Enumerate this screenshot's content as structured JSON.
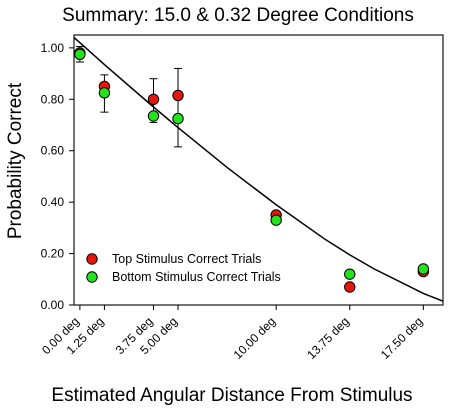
{
  "chart_data": {
    "type": "scatter",
    "title": "Summary: 15.0 & 0.32 Degree Conditions",
    "xlabel": "Estimated Angular Distance From Stimulus",
    "ylabel": "Probability Correct",
    "xlim": [
      -0.3,
      18.5
    ],
    "ylim": [
      0,
      1.05
    ],
    "grid": false,
    "legend_placement": "bottom-left",
    "x_ticks": [
      {
        "value": 0,
        "label": "0.00 deg"
      },
      {
        "value": 1.25,
        "label": "1.25 deg"
      },
      {
        "value": 3.75,
        "label": "3.75 deg"
      },
      {
        "value": 5,
        "label": "5.00 deg"
      },
      {
        "value": 10,
        "label": "10.00 deg"
      },
      {
        "value": 13.75,
        "label": "13.75 deg"
      },
      {
        "value": 17.5,
        "label": "17.50 deg"
      }
    ],
    "y_ticks": [
      {
        "value": 0,
        "label": "0.00"
      },
      {
        "value": 0.2,
        "label": "0.20"
      },
      {
        "value": 0.4,
        "label": "0.40"
      },
      {
        "value": 0.6,
        "label": "0.60"
      },
      {
        "value": 0.8,
        "label": "0.80"
      },
      {
        "value": 1,
        "label": "1.00"
      }
    ],
    "series": [
      {
        "name": "Top Stimulus Correct Trials",
        "color": "#e8150c",
        "points": [
          {
            "x": 0,
            "y": 0.98
          },
          {
            "x": 1.25,
            "y": 0.85
          },
          {
            "x": 3.75,
            "y": 0.8
          },
          {
            "x": 5,
            "y": 0.815
          },
          {
            "x": 10,
            "y": 0.35
          },
          {
            "x": 13.75,
            "y": 0.07
          },
          {
            "x": 17.5,
            "y": 0.13
          }
        ]
      },
      {
        "name": "Bottom Stimulus Correct Trials",
        "color": "#22e31c",
        "points": [
          {
            "x": 0,
            "y": 0.975
          },
          {
            "x": 1.25,
            "y": 0.825
          },
          {
            "x": 3.75,
            "y": 0.735
          },
          {
            "x": 5,
            "y": 0.725
          },
          {
            "x": 10,
            "y": 0.33
          },
          {
            "x": 13.75,
            "y": 0.12
          },
          {
            "x": 17.5,
            "y": 0.14
          }
        ]
      }
    ],
    "error_bars": [
      {
        "x": 0,
        "low": 0.945,
        "high": 1.005
      },
      {
        "x": 1.25,
        "low": 0.75,
        "high": 0.895
      },
      {
        "x": 3.75,
        "low": 0.71,
        "high": 0.88
      },
      {
        "x": 5,
        "low": 0.615,
        "high": 0.92
      }
    ],
    "fit_curve": {
      "type": "line",
      "color": "#000000",
      "points": [
        {
          "x": -0.3,
          "y": 1.04
        },
        {
          "x": 0,
          "y": 1.02
        },
        {
          "x": 1.25,
          "y": 0.935
        },
        {
          "x": 3.75,
          "y": 0.77
        },
        {
          "x": 5,
          "y": 0.69
        },
        {
          "x": 7.5,
          "y": 0.535
        },
        {
          "x": 10,
          "y": 0.39
        },
        {
          "x": 12.5,
          "y": 0.255
        },
        {
          "x": 13.75,
          "y": 0.195
        },
        {
          "x": 15,
          "y": 0.14
        },
        {
          "x": 17.5,
          "y": 0.045
        },
        {
          "x": 18.5,
          "y": 0.015
        }
      ]
    }
  }
}
